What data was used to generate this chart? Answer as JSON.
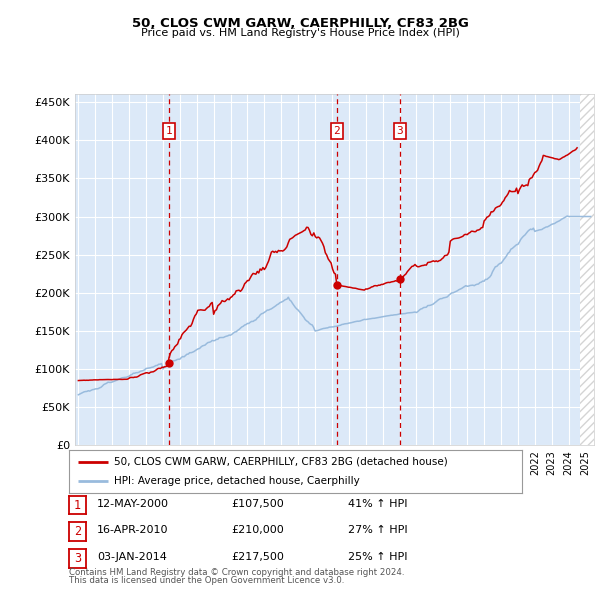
{
  "title1": "50, CLOS CWM GARW, CAERPHILLY, CF83 2BG",
  "title2": "Price paid vs. HM Land Registry's House Price Index (HPI)",
  "ylabel_ticks": [
    "£0",
    "£50K",
    "£100K",
    "£150K",
    "£200K",
    "£250K",
    "£300K",
    "£350K",
    "£400K",
    "£450K"
  ],
  "ytick_values": [
    0,
    50000,
    100000,
    150000,
    200000,
    250000,
    300000,
    350000,
    400000,
    450000
  ],
  "ylim": [
    0,
    460000
  ],
  "xlim_start": 1994.8,
  "xlim_end": 2025.5,
  "background_color": "#dce9f8",
  "grid_color": "#ffffff",
  "sale_color": "#cc0000",
  "hpi_color": "#99bbdd",
  "sale_label": "50, CLOS CWM GARW, CAERPHILLY, CF83 2BG (detached house)",
  "hpi_label": "HPI: Average price, detached house, Caerphilly",
  "transactions": [
    {
      "num": 1,
      "date": "12-MAY-2000",
      "price": 107500,
      "pct": "41%",
      "dir": "↑",
      "x": 2000.36
    },
    {
      "num": 2,
      "date": "16-APR-2010",
      "price": 210000,
      "pct": "27%",
      "dir": "↑",
      "x": 2010.29
    },
    {
      "num": 3,
      "date": "03-JAN-2014",
      "price": 217500,
      "pct": "25%",
      "dir": "↑",
      "x": 2014.01
    }
  ],
  "footer1": "Contains HM Land Registry data © Crown copyright and database right 2024.",
  "footer2": "This data is licensed under the Open Government Licence v3.0."
}
